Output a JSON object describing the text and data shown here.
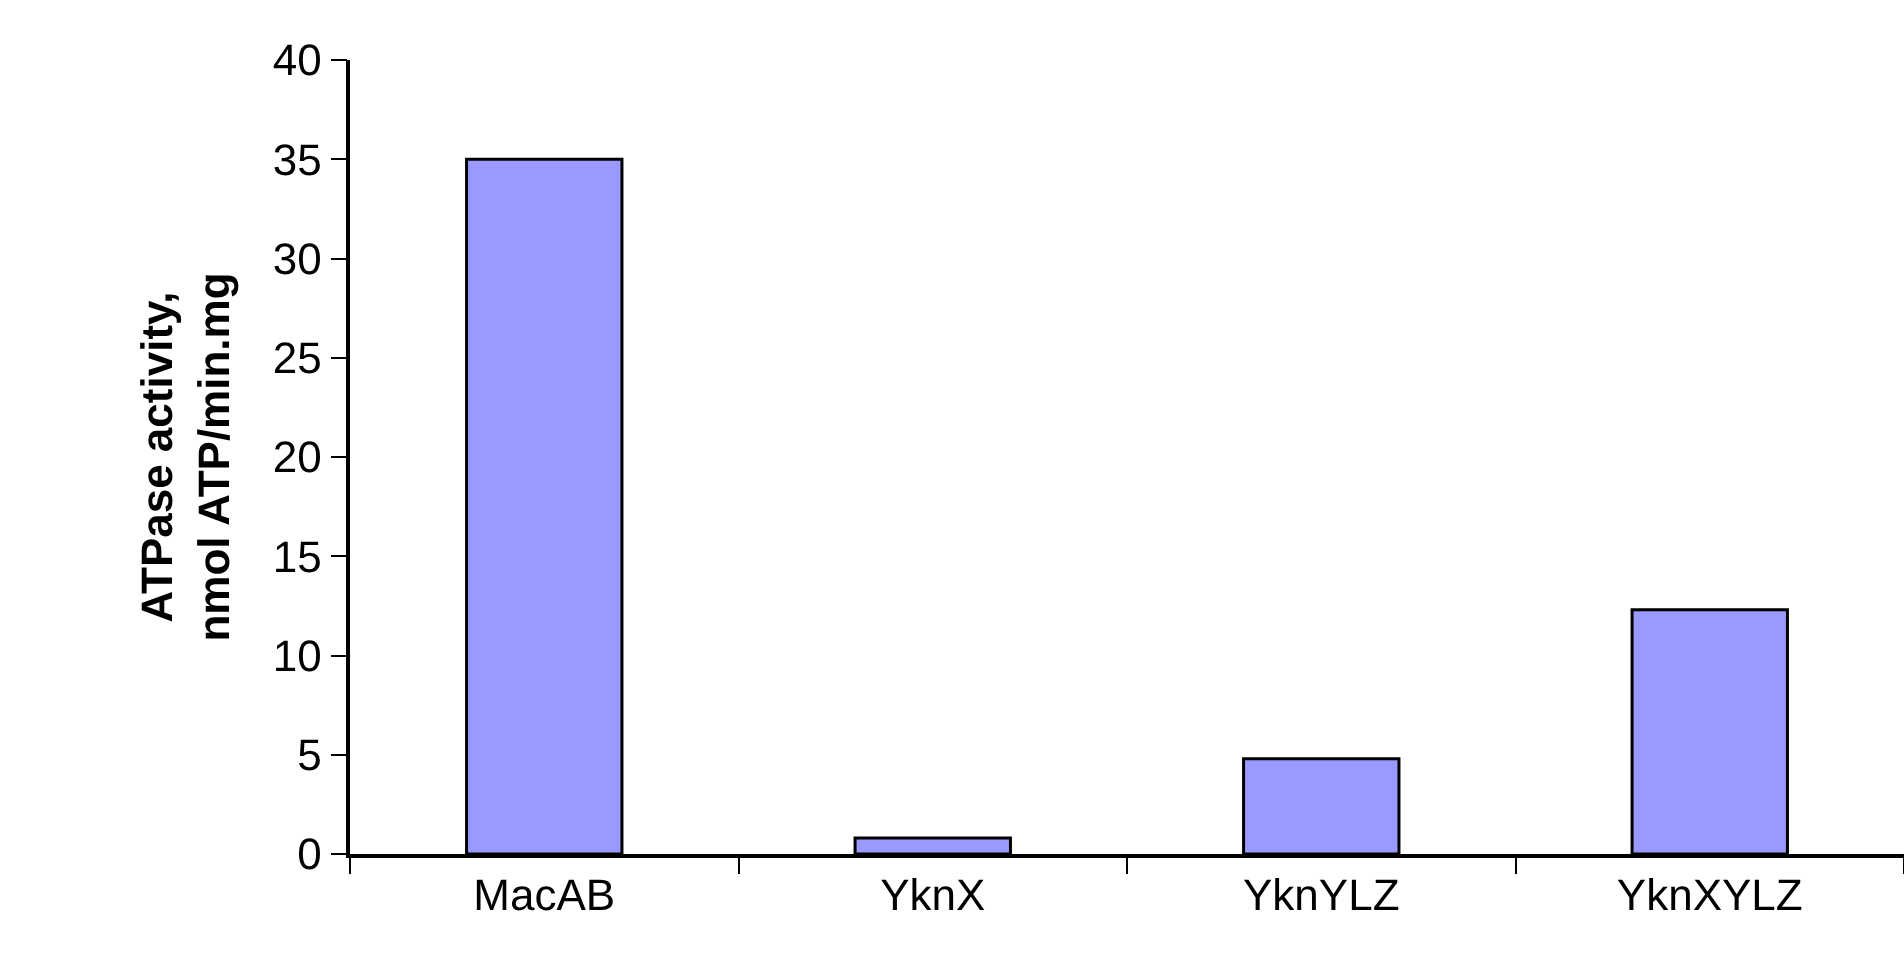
{
  "chart_data": {
    "type": "bar",
    "ylabel": "ATPase activity,\nnmol ATP/min.mg",
    "categories": [
      "MacAB",
      "YknX",
      "YknYLZ",
      "YknXYLZ"
    ],
    "values": [
      35,
      0.8,
      4.8,
      12.3
    ],
    "color": "#9999ff",
    "ylim": [
      0,
      40
    ],
    "yticks": [
      0,
      5,
      10,
      15,
      20,
      25,
      30,
      35,
      40
    ]
  }
}
